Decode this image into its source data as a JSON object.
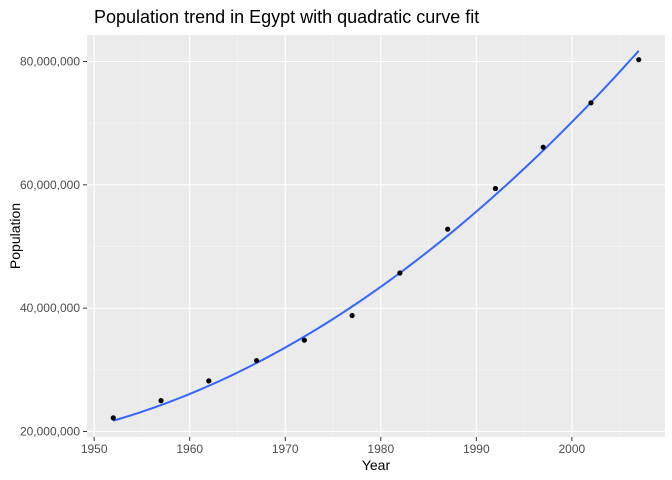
{
  "chart_data": {
    "type": "scatter",
    "title": "Population trend in Egypt with quadratic curve fit",
    "xlabel": "Year",
    "ylabel": "Population",
    "xlim": [
      1949.25,
      2009.75
    ],
    "ylim": [
      19100000,
      84300000
    ],
    "x_ticks": [
      1950,
      1960,
      1970,
      1980,
      1990,
      2000
    ],
    "x_tick_labels": [
      "1950",
      "1960",
      "1970",
      "1980",
      "1990",
      "2000"
    ],
    "y_ticks": [
      20000000,
      40000000,
      60000000,
      80000000
    ],
    "y_tick_labels": [
      "20,000,000",
      "40,000,000",
      "60,000,000",
      "80,000,000"
    ],
    "grid": true,
    "series": [
      {
        "type": "points",
        "x": [
          1952,
          1957,
          1962,
          1967,
          1972,
          1977,
          1982,
          1987,
          1992,
          1997,
          2002,
          2007
        ],
        "y": [
          22200000,
          25000000,
          28200000,
          31500000,
          34800000,
          38800000,
          45700000,
          52800000,
          59400000,
          66100000,
          73300000,
          80300000
        ]
      },
      {
        "type": "fit",
        "x": [
          1952,
          1957,
          1962,
          1967,
          1972,
          1977,
          1982,
          1987,
          1992,
          1997,
          2002,
          2007
        ],
        "y": [
          22100000,
          24400000,
          27100000,
          30700000,
          35100000,
          40200000,
          45900000,
          52000000,
          58700000,
          65800000,
          73300000,
          81400000
        ]
      }
    ],
    "colors": {
      "panel": "#ebebeb",
      "grid_major": "#ffffff",
      "grid_minor": "#f5f5f5",
      "points": "#000000",
      "fit_line": "#3366ff",
      "tick": "#333333"
    }
  }
}
